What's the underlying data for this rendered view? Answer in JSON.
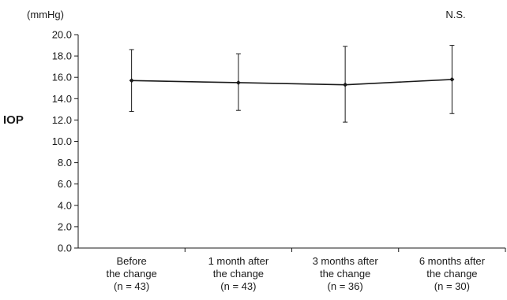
{
  "chart_data": {
    "type": "line",
    "title": "",
    "xlabel": "",
    "ylabel": "IOP",
    "unit": "(mmHg)",
    "annotation": "N.S.",
    "ylim": [
      0,
      20
    ],
    "yticks": [
      "0.0",
      "2.0",
      "4.0",
      "6.0",
      "8.0",
      "10.0",
      "12.0",
      "14.0",
      "16.0",
      "18.0",
      "20.0"
    ],
    "ytick_values": [
      0,
      2,
      4,
      6,
      8,
      10,
      12,
      14,
      16,
      18,
      20
    ],
    "categories": [
      [
        "Before",
        "the change",
        "(n = 43)"
      ],
      [
        "1 month after",
        "the change",
        "(n = 43)"
      ],
      [
        "3 months after",
        "the change",
        "(n = 36)"
      ],
      [
        "6 months after",
        "the change",
        "(n = 30)"
      ]
    ],
    "series": [
      {
        "values": [
          15.7,
          15.5,
          15.3,
          15.8
        ],
        "error_low": [
          12.8,
          12.9,
          11.8,
          12.6
        ],
        "error_high": [
          18.6,
          18.2,
          18.9,
          19.0
        ]
      }
    ],
    "grid": false,
    "line_color": "#1a1a1a"
  }
}
